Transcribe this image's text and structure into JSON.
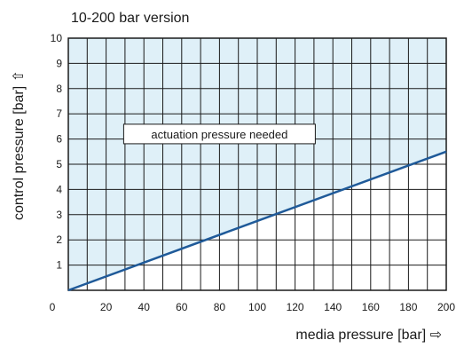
{
  "chart_data": {
    "type": "line",
    "title": "10-200 bar version",
    "xlabel": "media pressure [bar] ⇨",
    "ylabel": "control pressure [bar] ⇧",
    "x_ticks": [
      "0",
      "20",
      "40",
      "60",
      "80",
      "100",
      "120",
      "140",
      "160",
      "180",
      "200"
    ],
    "y_ticks": [
      "1",
      "2",
      "3",
      "4",
      "5",
      "6",
      "7",
      "8",
      "9",
      "10"
    ],
    "xlim": [
      0,
      200
    ],
    "ylim": [
      0,
      10
    ],
    "x_minor_step": 10,
    "y_minor_step": 1,
    "grid": true,
    "series": [
      {
        "x": [
          0,
          200
        ],
        "y": [
          0,
          5.5
        ]
      }
    ],
    "shaded_region": "above line",
    "annotations": [
      {
        "text": "actuation pressure needed",
        "x": 80,
        "y": 6.2
      }
    ],
    "colors": {
      "fill": "#dff0f8",
      "line": "#1f5a99",
      "grid": "#1a1a1a"
    }
  }
}
